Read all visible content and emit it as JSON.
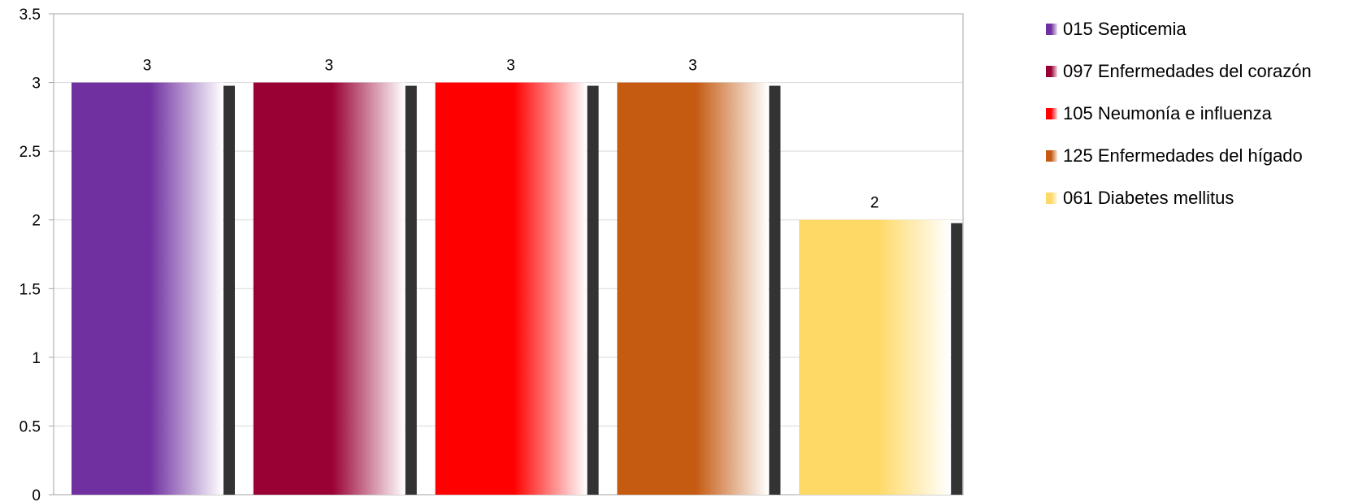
{
  "chart_data": {
    "type": "bar",
    "categories": [
      "015 Septicemia",
      "097 Enfermedades del corazón",
      "105 Neumonía e influenza",
      "125 Enfermedades del hígado",
      "061 Diabetes mellitus"
    ],
    "values": [
      3,
      3,
      3,
      3,
      2
    ],
    "data_labels": [
      "3",
      "3",
      "3",
      "3",
      "2"
    ],
    "colors": [
      "#7030a0",
      "#990033",
      "#ff0000",
      "#c55a11",
      "#ffd966"
    ],
    "ylim": [
      0,
      3.5
    ],
    "yticks": [
      "0",
      "0.5",
      "1",
      "1.5",
      "2",
      "2.5",
      "3",
      "3.5"
    ],
    "grid": true,
    "legend_position": "right",
    "title": "",
    "xlabel": "",
    "ylabel": ""
  }
}
